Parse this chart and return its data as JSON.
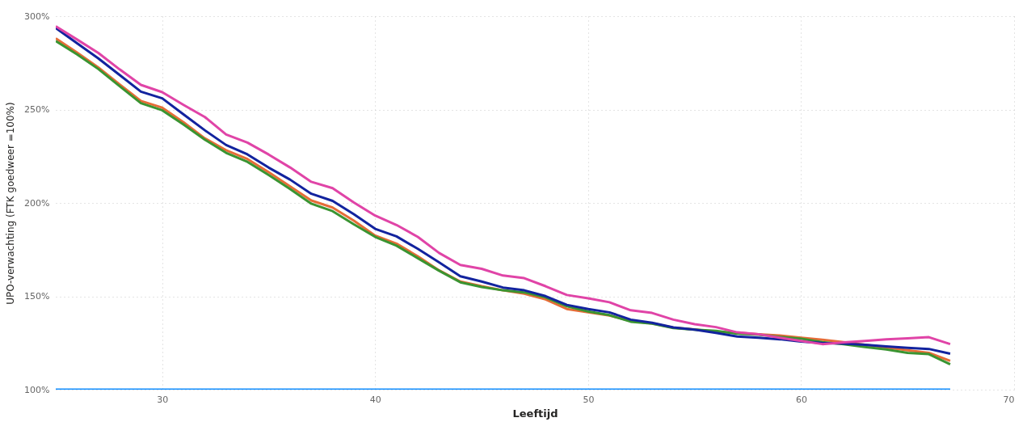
{
  "chart_data": {
    "type": "line",
    "xlabel": "Leeftijd",
    "ylabel": "UPO-verwachting (FTK goedweer =100%)",
    "x": [
      25,
      26,
      27,
      28,
      29,
      30,
      31,
      32,
      33,
      34,
      35,
      36,
      37,
      38,
      39,
      40,
      41,
      42,
      43,
      44,
      45,
      46,
      47,
      48,
      49,
      50,
      51,
      52,
      53,
      54,
      55,
      56,
      57,
      58,
      59,
      60,
      61,
      62,
      63,
      64,
      65,
      66,
      67
    ],
    "xlim": [
      25,
      70
    ],
    "xticks": [
      30,
      40,
      50,
      60,
      70
    ],
    "ylim": [
      100,
      300
    ],
    "yticks": [
      {
        "value": 100,
        "label": "100%"
      },
      {
        "value": 150,
        "label": "150%"
      },
      {
        "value": 200,
        "label": "200%"
      },
      {
        "value": 250,
        "label": "250%"
      },
      {
        "value": 300,
        "label": "300%"
      }
    ],
    "grid": true,
    "line_style": "solid",
    "marker": "none",
    "series": [
      {
        "color": "#118dff",
        "values": [
          100,
          100,
          100,
          100,
          100,
          100,
          100,
          100,
          100,
          100,
          100,
          100,
          100,
          100,
          100,
          100,
          100,
          100,
          100,
          100,
          100,
          100,
          100,
          100,
          100,
          100,
          100,
          100,
          100,
          100,
          100,
          100,
          100,
          100,
          100,
          100,
          100,
          100,
          100,
          100,
          100,
          100,
          100
        ]
      },
      {
        "color": "#e66c37",
        "values": [
          288.1,
          280.5,
          272.5,
          263.5,
          254.6,
          251,
          243.2,
          234.6,
          228.2,
          223.5,
          216.4,
          208.9,
          201.3,
          197.5,
          190.5,
          182.5,
          178.2,
          171.4,
          163.9,
          157.9,
          155.4,
          153.2,
          151.4,
          148.3,
          143.2,
          141.4,
          139.7,
          136.8,
          135.5,
          133.2,
          132.3,
          130.8,
          130.5,
          129.7,
          129,
          127.8,
          126.7,
          125.4,
          124,
          122.6,
          121.1,
          119.7,
          115.4
        ]
      },
      {
        "color": "#3a9431",
        "values": [
          286.7,
          279.5,
          271.7,
          262.5,
          253.4,
          249.6,
          242,
          233.9,
          226.8,
          222,
          214.9,
          207.5,
          199.6,
          195.6,
          188.5,
          181.8,
          177.1,
          170.4,
          163.7,
          157.5,
          155,
          153.2,
          152.1,
          149.4,
          144.7,
          141.9,
          139.9,
          136.4,
          135.4,
          133,
          132.1,
          131.5,
          130,
          129.4,
          128.3,
          127.3,
          125.4,
          124.3,
          122.8,
          121.5,
          119.7,
          119,
          113.6
        ]
      },
      {
        "color": "#12239e",
        "values": [
          293.7,
          285.5,
          277.4,
          268.5,
          259.6,
          256,
          247.4,
          238.9,
          231,
          226,
          218.9,
          212.5,
          204.9,
          201.1,
          193.9,
          186.1,
          182.1,
          175.4,
          168.2,
          160.7,
          157.9,
          154.7,
          153.2,
          150.1,
          145.4,
          143.2,
          141.4,
          137.5,
          135.8,
          133.3,
          132.1,
          130.4,
          128.5,
          127.8,
          127,
          125.8,
          125,
          124.7,
          124,
          123.2,
          122.4,
          121.8,
          119.3
        ]
      },
      {
        "color": "#e044a7",
        "values": [
          294.6,
          287.5,
          280.3,
          271.5,
          263.2,
          259.3,
          252.5,
          246,
          236.6,
          232.3,
          225.9,
          219,
          211.3,
          207.9,
          200.2,
          193.2,
          188.2,
          181.8,
          173.2,
          166.8,
          164.7,
          161.1,
          159.7,
          155.4,
          150.7,
          148.9,
          146.8,
          142.5,
          141.1,
          137.5,
          135.1,
          133.5,
          130.7,
          129.7,
          127.8,
          126.1,
          124.4,
          125.3,
          126.1,
          127,
          127.5,
          128.1,
          124.4
        ]
      }
    ]
  }
}
